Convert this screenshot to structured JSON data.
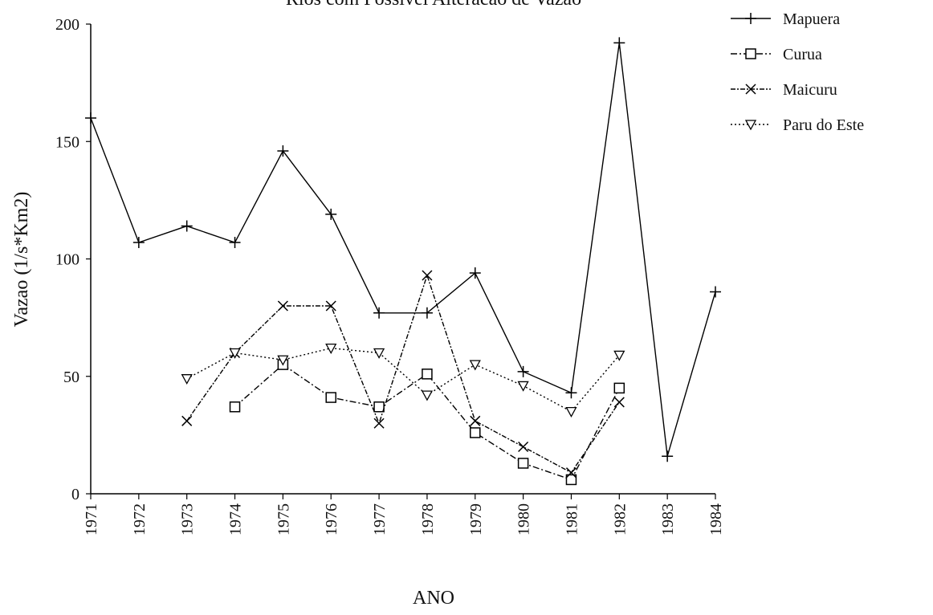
{
  "chart_data": {
    "type": "line",
    "title": "Rios com Possivel Alteracao de Vazao",
    "xlabel": "ANO",
    "ylabel": "Vazao (1/s*Km2)",
    "categories": [
      "1971",
      "1972",
      "1973",
      "1974",
      "1975",
      "1976",
      "1977",
      "1978",
      "1979",
      "1980",
      "1981",
      "1982",
      "1983",
      "1984"
    ],
    "series": [
      {
        "name": "Mapuera",
        "color": "#000000",
        "marker": "plus",
        "dash": "none",
        "values": [
          160,
          107,
          114,
          107,
          146,
          119,
          77,
          77,
          94,
          52,
          43,
          192,
          16,
          86
        ]
      },
      {
        "name": "Curua",
        "color": "#000000",
        "marker": "square",
        "dash": "8 3 2 3",
        "values": [
          null,
          null,
          null,
          37,
          55,
          41,
          37,
          51,
          26,
          13,
          6,
          45,
          null,
          null
        ]
      },
      {
        "name": "Maicuru",
        "color": "#000000",
        "marker": "x",
        "dash": "6 2 2 2",
        "values": [
          null,
          null,
          31,
          60,
          80,
          80,
          30,
          93,
          31,
          20,
          9,
          39,
          null,
          null
        ]
      },
      {
        "name": "Paru do Este",
        "color": "#000000",
        "marker": "triangle-down",
        "dash": "2 3",
        "values": [
          null,
          null,
          49,
          60,
          57,
          62,
          60,
          42,
          55,
          46,
          35,
          59,
          null,
          null
        ]
      }
    ],
    "ylim": [
      0,
      200
    ],
    "yticks": [
      0,
      50,
      100,
      150,
      200
    ],
    "grid": false,
    "legend": "top-right"
  }
}
